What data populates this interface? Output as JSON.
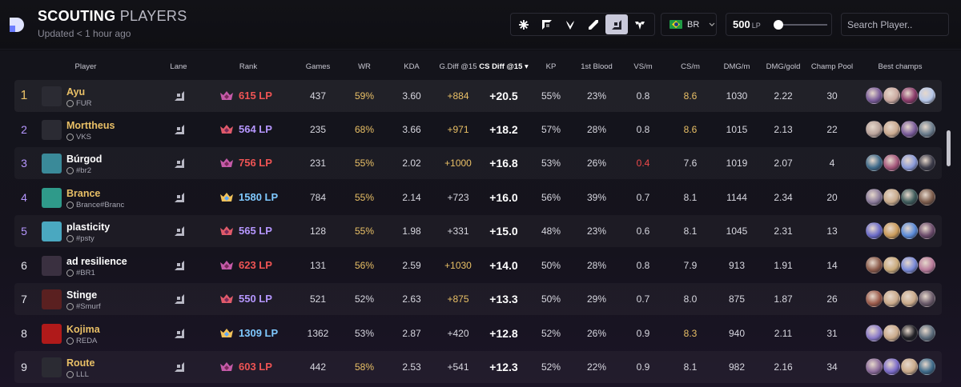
{
  "header": {
    "title_bold": "SCOUTING",
    "title_rest": "PLAYERS",
    "updated": "Updated < 1 hour ago",
    "region": "BR",
    "lp_value": "500",
    "lp_unit": "LP",
    "lp_slider_fraction": 0.05,
    "search_placeholder": "Search Player..",
    "roles": [
      {
        "name": "all-roles-icon",
        "active": false
      },
      {
        "name": "top-lane-icon",
        "active": false
      },
      {
        "name": "jungle-icon",
        "active": false
      },
      {
        "name": "mid-lane-icon",
        "active": false
      },
      {
        "name": "bot-lane-icon",
        "active": true
      },
      {
        "name": "support-icon",
        "active": false
      }
    ]
  },
  "columns": [
    "Player",
    "Lane",
    "Rank",
    "Games",
    "WR",
    "KDA",
    "G.Diff @15",
    "CS Diff @15 ▾",
    "KP",
    "1st Blood",
    "VS/m",
    "CS/m",
    "DMG/m",
    "DMG/gold",
    "Champ Pool",
    "Best champs"
  ],
  "colors": {
    "gold": "#e9c066",
    "purple": "#b697ff",
    "red": "#ef4a4a",
    "blue": "#6cc4ff",
    "lp_red": "#ef5454",
    "lp_purple": "#b697ff",
    "lp_blue": "#7fc9ff"
  },
  "players": [
    {
      "rank": "1",
      "name": "Ayu",
      "tag": "FUR",
      "tier": "master",
      "lp": "615 LP",
      "games": "437",
      "wr": "59%",
      "kda": "3.60",
      "gdiff": "+884",
      "csdiff": "+20.5",
      "kp": "55%",
      "fb": "23%",
      "vsm": "0.8",
      "csm": "8.6",
      "dmgm": "1030",
      "dmgg": "2.22",
      "pool": "30",
      "champs": [
        "#7a5c9a",
        "#caa9a0",
        "#8a3b6a",
        "#b7c8ea"
      ],
      "avatar": "#2b2b33"
    },
    {
      "rank": "2",
      "name": "Morttheus",
      "tag": "VKS",
      "tier": "grandmaster",
      "lp": "564 LP",
      "games": "235",
      "wr": "68%",
      "kda": "3.66",
      "gdiff": "+971",
      "csdiff": "+18.2",
      "kp": "57%",
      "fb": "28%",
      "vsm": "0.8",
      "csm": "8.6",
      "dmgm": "1015",
      "dmgg": "2.13",
      "pool": "22",
      "champs": [
        "#b8a29a",
        "#c9a98f",
        "#7a5c9a",
        "#6a7c8c"
      ],
      "avatar": "#2b2b33"
    },
    {
      "rank": "3",
      "name": "Búrgod",
      "tag": "#br2",
      "tier": "master",
      "lp": "756 LP",
      "games": "231",
      "wr": "55%",
      "kda": "2.02",
      "gdiff": "+1000",
      "csdiff": "+16.8",
      "kp": "53%",
      "fb": "26%",
      "vsm": "0.4",
      "csm": "7.6",
      "dmgm": "1019",
      "dmgg": "2.07",
      "pool": "4",
      "champs": [
        "#3e6a8a",
        "#a3557a",
        "#8a9ad8",
        "#3a3a48"
      ],
      "avatar": "#3a8a99"
    },
    {
      "rank": "4",
      "name": "Brance",
      "tag": "Brance#Branc",
      "tier": "challenger",
      "lp": "1580 LP",
      "games": "784",
      "wr": "55%",
      "kda": "2.14",
      "gdiff": "+723",
      "csdiff": "+16.0",
      "kp": "56%",
      "fb": "39%",
      "vsm": "0.7",
      "csm": "8.1",
      "dmgm": "1144",
      "dmgg": "2.34",
      "pool": "20",
      "champs": [
        "#8a7a9a",
        "#c7a98a",
        "#3d5a5a",
        "#7a5a4a"
      ],
      "avatar": "#2f9a8a"
    },
    {
      "rank": "5",
      "name": "plasticity",
      "tag": "#psty",
      "tier": "grandmaster",
      "lp": "565 LP",
      "games": "128",
      "wr": "55%",
      "kda": "1.98",
      "gdiff": "+331",
      "csdiff": "+15.0",
      "kp": "48%",
      "fb": "23%",
      "vsm": "0.6",
      "csm": "8.1",
      "dmgm": "1045",
      "dmgg": "2.31",
      "pool": "13",
      "champs": [
        "#6a6ac8",
        "#c99a5a",
        "#5a8ad8",
        "#6a4a6a"
      ],
      "avatar": "#4aa8c0"
    },
    {
      "rank": "6",
      "name": "ad resilience",
      "tag": "#BR1",
      "tier": "master",
      "lp": "623 LP",
      "games": "131",
      "wr": "56%",
      "kda": "2.59",
      "gdiff": "+1030",
      "csdiff": "+14.0",
      "kp": "50%",
      "fb": "28%",
      "vsm": "0.8",
      "csm": "7.9",
      "dmgm": "913",
      "dmgg": "1.91",
      "pool": "14",
      "champs": [
        "#8a5a4a",
        "#c9a97a",
        "#7a8ad8",
        "#b87a9a"
      ],
      "avatar": "#3a3040"
    },
    {
      "rank": "7",
      "name": "Stinge",
      "tag": "#Smurf",
      "tier": "grandmaster",
      "lp": "550 LP",
      "games": "521",
      "wr": "52%",
      "kda": "2.63",
      "gdiff": "+875",
      "csdiff": "+13.3",
      "kp": "50%",
      "fb": "29%",
      "vsm": "0.7",
      "csm": "8.0",
      "dmgm": "875",
      "dmgg": "1.87",
      "pool": "26",
      "champs": [
        "#9a5a4a",
        "#c9a98a",
        "#c9a98a",
        "#6a5a6a"
      ],
      "avatar": "#5a2020"
    },
    {
      "rank": "8",
      "name": "Kojima",
      "tag": "REDA",
      "tier": "challenger",
      "lp": "1309 LP",
      "games": "1362",
      "wr": "53%",
      "kda": "2.87",
      "gdiff": "+420",
      "csdiff": "+12.8",
      "kp": "52%",
      "fb": "26%",
      "vsm": "0.9",
      "csm": "8.3",
      "dmgm": "940",
      "dmgg": "2.11",
      "pool": "31",
      "champs": [
        "#8a7ac8",
        "#c9a98a",
        "#1e1e24",
        "#5a6a7a"
      ],
      "avatar": "#b01a1a"
    },
    {
      "rank": "9",
      "name": "Route",
      "tag": "LLL",
      "tier": "master",
      "lp": "603 LP",
      "games": "442",
      "wr": "58%",
      "kda": "2.53",
      "gdiff": "+541",
      "csdiff": "+12.3",
      "kp": "52%",
      "fb": "22%",
      "vsm": "0.9",
      "csm": "8.1",
      "dmgm": "982",
      "dmgg": "2.16",
      "pool": "34",
      "champs": [
        "#8a6a9a",
        "#7a6ac8",
        "#c9a98a",
        "#3e6a8a"
      ],
      "avatar": "#2b2b33"
    }
  ]
}
